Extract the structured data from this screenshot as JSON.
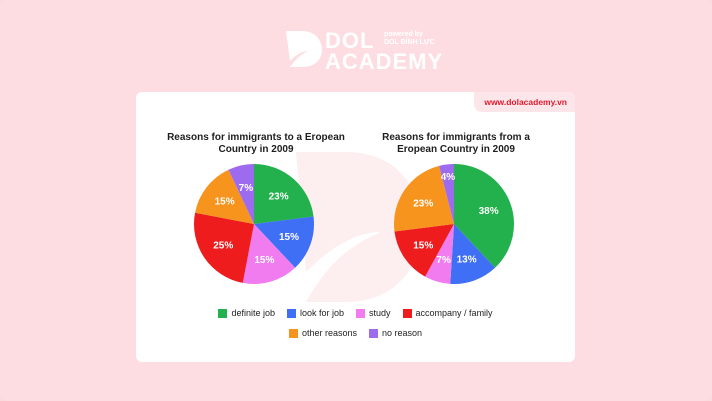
{
  "brand": {
    "name_line1": "DOL",
    "name_line2": "ACADEMY",
    "powered_line1": "powered by",
    "powered_line2": "DOL ĐÌNH LỰC",
    "url": "www.dolacademy.vn",
    "background_color": "#fddde1",
    "accent_color": "#e0192f"
  },
  "legend": {
    "row1": [
      {
        "label": "definite job",
        "color": "#22b14c"
      },
      {
        "label": "look for job",
        "color": "#3f6ff5"
      },
      {
        "label": "study",
        "color": "#f07cf0"
      },
      {
        "label": "accompany / family",
        "color": "#ee1c1c"
      }
    ],
    "row2": [
      {
        "label": "other reasons",
        "color": "#f7941d"
      },
      {
        "label": "no reason",
        "color": "#9c6bf0"
      }
    ]
  },
  "chart_data": [
    {
      "type": "pie",
      "title": "Reasons for immigrants to a Eropean Country in 2009",
      "title_line1": "Reasons for immigrants to a Eropean",
      "title_line2": "Country in 2009",
      "categories": [
        "definite job",
        "look for job",
        "study",
        "accompany / family",
        "other reasons",
        "no reason"
      ],
      "values": [
        23,
        15,
        15,
        25,
        15,
        7
      ],
      "labels": [
        "23%",
        "15%",
        "15%",
        "25%",
        "15%",
        "7%"
      ],
      "colors": [
        "#22b14c",
        "#3f6ff5",
        "#f07cf0",
        "#ee1c1c",
        "#f7941d",
        "#9c6bf0"
      ],
      "start_angle": "12 o'clock, clockwise",
      "legend_position": "bottom"
    },
    {
      "type": "pie",
      "title": "Reasons for immigrants from a Eropean Country in 2009",
      "title_line1": "Reasons for immigrants from a",
      "title_line2": "Eropean Country in 2009",
      "categories": [
        "definite job",
        "look for job",
        "study",
        "accompany / family",
        "other reasons",
        "no reason"
      ],
      "values": [
        38,
        13,
        7,
        15,
        23,
        4
      ],
      "labels": [
        "38%",
        "13%",
        "7%",
        "15%",
        "23%",
        "4%"
      ],
      "colors": [
        "#22b14c",
        "#3f6ff5",
        "#f07cf0",
        "#ee1c1c",
        "#f7941d",
        "#9c6bf0"
      ],
      "start_angle": "12 o'clock, clockwise",
      "legend_position": "bottom"
    }
  ]
}
